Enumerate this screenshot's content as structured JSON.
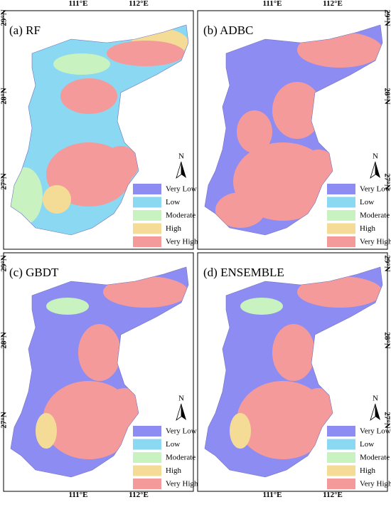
{
  "panels": [
    {
      "title": "(a) RF"
    },
    {
      "title": "(b) ADBC"
    },
    {
      "title": "(c) GBDT"
    },
    {
      "title": "(d) ENSEMBLE"
    }
  ],
  "legend": [
    {
      "label": "Very Low",
      "color": "#8c8cf2"
    },
    {
      "label": "Low",
      "color": "#8ad8f2"
    },
    {
      "label": "Moderate",
      "color": "#c8f2c0"
    },
    {
      "label": "High",
      "color": "#f5dc96"
    },
    {
      "label": "Very High",
      "color": "#f59a9a"
    }
  ],
  "longitude_labels": [
    "111°E",
    "112°E"
  ],
  "latitude_labels": [
    "29°N",
    "28°N",
    "27°N"
  ],
  "north_label": "N"
}
